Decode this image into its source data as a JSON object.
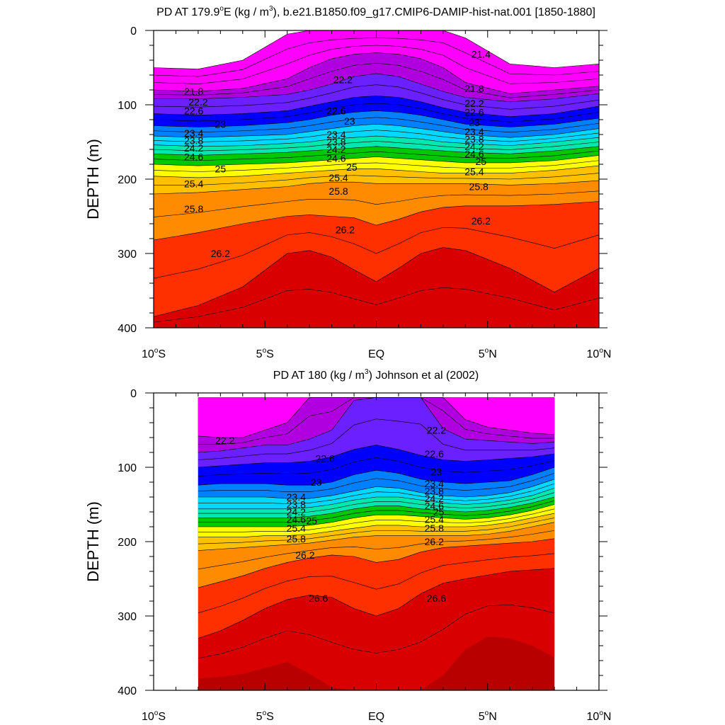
{
  "figure": {
    "background": "#ffffff",
    "color_levels": [
      21.4,
      21.6,
      21.8,
      22.0,
      22.2,
      22.4,
      22.6,
      22.8,
      23.0,
      23.2,
      23.4,
      23.6,
      23.8,
      24.0,
      24.2,
      24.4,
      24.6,
      24.8,
      25.0,
      25.2,
      25.4,
      25.6,
      25.8,
      26.0,
      26.2,
      26.4,
      26.6,
      26.8
    ],
    "color_scale": [
      "#ffffff",
      "#6e6e6e",
      "#a6a6a6",
      "#ff00ff",
      "#d400e8",
      "#b000e0",
      "#8c00f0",
      "#6a20ff",
      "#4830ff",
      "#0000ff",
      "#0050ff",
      "#0080ff",
      "#00b0ff",
      "#00d8ff",
      "#00ffff",
      "#00e8b0",
      "#00d060",
      "#00c800",
      "#80ff00",
      "#ffff00",
      "#ffe000",
      "#ffc000",
      "#ffa030",
      "#ff8c00",
      "#ff6000",
      "#ff3000",
      "#ff0000",
      "#d80000",
      "#b80000"
    ]
  },
  "chart_data": [
    {
      "type": "heatmap",
      "title_line": "PD AT 179.9°E (kg / m³), b.e21.B1850.f09_g17.CMIP6-DAMIP-hist-nat.001 [1850-1880]",
      "title_parts": {
        "a": "PD AT 179.9",
        "deg": "o",
        "b": "E (kg / m",
        "sup": "3",
        "c": "), b.e21.B1850.f09_g17.CMIP6-DAMIP-hist-nat.001 [1850-1880]"
      },
      "ylabel": "DEPTH (m)",
      "x_ticks": [
        {
          "value": -10,
          "label": "10°S",
          "num": "10",
          "deg": "o",
          "hem": "S"
        },
        {
          "value": -5,
          "label": "5°S",
          "num": "5",
          "deg": "o",
          "hem": "S"
        },
        {
          "value": 0,
          "label": "EQ",
          "num": "EQ",
          "deg": "",
          "hem": ""
        },
        {
          "value": 5,
          "label": "5°N",
          "num": "5",
          "deg": "o",
          "hem": "N"
        },
        {
          "value": 10,
          "label": "10°N",
          "num": "10",
          "deg": "o",
          "hem": "N"
        }
      ],
      "y_ticks": [
        {
          "value": 0,
          "label": "0"
        },
        {
          "value": 100,
          "label": "100"
        },
        {
          "value": 200,
          "label": "200"
        },
        {
          "value": 300,
          "label": "300"
        },
        {
          "value": 400,
          "label": "400"
        }
      ],
      "xlim": [
        -10,
        10
      ],
      "ylim": [
        0,
        400
      ],
      "data_xlim": [
        -10,
        10
      ],
      "contour_interval": 0.2,
      "x": [
        -10,
        -8,
        -6,
        -4,
        -3,
        -2,
        -1,
        0,
        1,
        2,
        3,
        4,
        6,
        8,
        10
      ],
      "isopycnals": [
        {
          "level": 21.4,
          "depth": [
            50,
            52,
            40,
            5,
            0,
            0,
            0,
            0,
            0,
            0,
            0,
            10,
            45,
            50,
            45
          ]
        },
        {
          "level": 22.0,
          "depth": [
            80,
            82,
            78,
            65,
            50,
            38,
            32,
            30,
            32,
            38,
            50,
            70,
            85,
            80,
            75
          ]
        },
        {
          "level": 22.4,
          "depth": [
            92,
            92,
            90,
            86,
            80,
            72,
            62,
            58,
            62,
            72,
            82,
            90,
            96,
            92,
            85
          ]
        },
        {
          "level": 22.8,
          "depth": [
            112,
            114,
            112,
            108,
            102,
            96,
            90,
            88,
            90,
            96,
            104,
            110,
            116,
            112,
            102
          ]
        },
        {
          "level": 23.2,
          "depth": [
            128,
            130,
            128,
            124,
            120,
            114,
            110,
            108,
            110,
            114,
            120,
            126,
            130,
            126,
            118
          ]
        },
        {
          "level": 23.6,
          "depth": [
            142,
            144,
            142,
            140,
            136,
            132,
            128,
            126,
            128,
            132,
            136,
            140,
            144,
            140,
            132
          ]
        },
        {
          "level": 24.0,
          "depth": [
            154,
            156,
            155,
            152,
            150,
            146,
            144,
            142,
            144,
            146,
            150,
            152,
            155,
            150,
            144
          ]
        },
        {
          "level": 24.4,
          "depth": [
            166,
            168,
            166,
            164,
            162,
            160,
            158,
            156,
            158,
            160,
            162,
            164,
            166,
            162,
            156
          ]
        },
        {
          "level": 24.8,
          "depth": [
            180,
            182,
            180,
            178,
            176,
            174,
            172,
            170,
            172,
            174,
            176,
            178,
            178,
            175,
            168
          ]
        },
        {
          "level": 25.2,
          "depth": [
            196,
            198,
            196,
            192,
            190,
            188,
            186,
            186,
            188,
            190,
            192,
            192,
            192,
            188,
            182
          ]
        },
        {
          "level": 25.6,
          "depth": [
            220,
            218,
            214,
            210,
            206,
            204,
            204,
            206,
            206,
            206,
            206,
            206,
            208,
            206,
            202
          ]
        },
        {
          "level": 26.0,
          "depth": [
            282,
            272,
            260,
            250,
            248,
            250,
            252,
            262,
            254,
            244,
            238,
            236,
            236,
            234,
            230
          ]
        },
        {
          "level": 26.4,
          "depth": [
            385,
            370,
            345,
            300,
            296,
            305,
            322,
            338,
            320,
            300,
            292,
            296,
            320,
            352,
            320
          ]
        },
        {
          "level": 26.8,
          "depth": [
            400,
            400,
            400,
            400,
            400,
            400,
            400,
            400,
            400,
            400,
            400,
            400,
            400,
            400,
            400
          ]
        }
      ],
      "contour_labels": [
        {
          "text": "21.4",
          "x": 4.7,
          "depth": 32
        },
        {
          "text": "21.8",
          "x": -8.2,
          "depth": 82
        },
        {
          "text": "22.2",
          "x": -8.0,
          "depth": 96
        },
        {
          "text": "22.6",
          "x": -8.2,
          "depth": 108
        },
        {
          "text": "23",
          "x": -7.0,
          "depth": 126
        },
        {
          "text": "23.4",
          "x": -8.2,
          "depth": 138
        },
        {
          "text": "23.8",
          "x": -8.2,
          "depth": 148
        },
        {
          "text": "24.2",
          "x": -8.2,
          "depth": 158
        },
        {
          "text": "24.6",
          "x": -8.2,
          "depth": 170
        },
        {
          "text": "25",
          "x": -7.0,
          "depth": 186
        },
        {
          "text": "25.4",
          "x": -8.2,
          "depth": 206
        },
        {
          "text": "25.8",
          "x": -8.2,
          "depth": 240
        },
        {
          "text": "26.2",
          "x": -7.0,
          "depth": 300
        },
        {
          "text": "22.2",
          "x": -1.5,
          "depth": 66
        },
        {
          "text": "22.6",
          "x": -1.8,
          "depth": 108
        },
        {
          "text": "23",
          "x": -1.2,
          "depth": 122
        },
        {
          "text": "23.4",
          "x": -1.8,
          "depth": 140
        },
        {
          "text": "23.8",
          "x": -1.8,
          "depth": 150
        },
        {
          "text": "24.2",
          "x": -1.8,
          "depth": 160
        },
        {
          "text": "24.6",
          "x": -1.8,
          "depth": 172
        },
        {
          "text": "25",
          "x": -1.1,
          "depth": 184
        },
        {
          "text": "25.4",
          "x": -1.7,
          "depth": 198
        },
        {
          "text": "25.8",
          "x": -1.7,
          "depth": 216
        },
        {
          "text": "26.2",
          "x": -1.4,
          "depth": 268
        },
        {
          "text": "21.8",
          "x": 4.4,
          "depth": 78
        },
        {
          "text": "22.2",
          "x": 4.4,
          "depth": 98
        },
        {
          "text": "22.6",
          "x": 4.4,
          "depth": 110
        },
        {
          "text": "23",
          "x": 4.4,
          "depth": 124
        },
        {
          "text": "23.4",
          "x": 4.4,
          "depth": 136
        },
        {
          "text": "23.8",
          "x": 4.4,
          "depth": 146
        },
        {
          "text": "24.2",
          "x": 4.4,
          "depth": 156
        },
        {
          "text": "24.6",
          "x": 4.4,
          "depth": 166
        },
        {
          "text": "25",
          "x": 4.7,
          "depth": 176
        },
        {
          "text": "25.4",
          "x": 4.4,
          "depth": 190
        },
        {
          "text": "25.8",
          "x": 4.6,
          "depth": 210
        },
        {
          "text": "26.2",
          "x": 4.7,
          "depth": 256
        }
      ]
    },
    {
      "type": "heatmap",
      "title_line": "PD AT 180 (kg / m³) Johnson et al (2002)",
      "title_parts": {
        "a": "PD AT 180 (kg / m",
        "deg": "",
        "b": "",
        "sup": "3",
        "c": ") Johnson et al (2002)"
      },
      "ylabel": "DEPTH (m)",
      "x_ticks": [
        {
          "value": -10,
          "label": "10°S",
          "num": "10",
          "deg": "o",
          "hem": "S"
        },
        {
          "value": -5,
          "label": "5°S",
          "num": "5",
          "deg": "o",
          "hem": "S"
        },
        {
          "value": 0,
          "label": "EQ",
          "num": "EQ",
          "deg": "",
          "hem": ""
        },
        {
          "value": 5,
          "label": "5°N",
          "num": "5",
          "deg": "o",
          "hem": "N"
        },
        {
          "value": 10,
          "label": "10°N",
          "num": "10",
          "deg": "o",
          "hem": "N"
        }
      ],
      "y_ticks": [
        {
          "value": 0,
          "label": "0"
        },
        {
          "value": 100,
          "label": "100"
        },
        {
          "value": 200,
          "label": "200"
        },
        {
          "value": 300,
          "label": "300"
        },
        {
          "value": 400,
          "label": "400"
        }
      ],
      "xlim": [
        -10,
        10
      ],
      "ylim": [
        0,
        400
      ],
      "data_xlim": [
        -8,
        8
      ],
      "data_top_depth": 6,
      "contour_interval": 0.2,
      "x": [
        -8,
        -7,
        -6,
        -5,
        -4,
        -3,
        -2,
        -1,
        0,
        1,
        2,
        3,
        4,
        5,
        6,
        7,
        8
      ],
      "isopycnals": [
        {
          "level": 22.0,
          "depth": [
            58,
            60,
            60,
            50,
            40,
            0,
            0,
            0,
            0,
            0,
            0,
            0,
            36,
            46,
            50,
            54,
            56
          ]
        },
        {
          "level": 22.4,
          "depth": [
            80,
            78,
            74,
            70,
            70,
            62,
            50,
            10,
            0,
            0,
            0,
            48,
            62,
            64,
            66,
            68,
            66
          ]
        },
        {
          "level": 22.8,
          "depth": [
            100,
            98,
            96,
            94,
            94,
            92,
            86,
            76,
            70,
            76,
            84,
            90,
            92,
            90,
            88,
            86,
            82
          ]
        },
        {
          "level": 23.2,
          "depth": [
            124,
            122,
            122,
            122,
            124,
            124,
            120,
            110,
            104,
            108,
            116,
            120,
            122,
            120,
            118,
            110,
            100
          ]
        },
        {
          "level": 23.6,
          "depth": [
            140,
            140,
            140,
            140,
            142,
            142,
            138,
            132,
            126,
            128,
            134,
            138,
            140,
            138,
            134,
            126,
            116
          ]
        },
        {
          "level": 24.0,
          "depth": [
            156,
            156,
            156,
            156,
            156,
            154,
            150,
            144,
            140,
            140,
            144,
            148,
            150,
            148,
            144,
            138,
            128
          ]
        },
        {
          "level": 24.4,
          "depth": [
            168,
            168,
            168,
            168,
            168,
            166,
            162,
            156,
            152,
            152,
            156,
            158,
            160,
            158,
            154,
            148,
            140
          ]
        },
        {
          "level": 24.8,
          "depth": [
            180,
            180,
            180,
            180,
            180,
            178,
            174,
            168,
            164,
            164,
            166,
            168,
            170,
            168,
            164,
            158,
            150
          ]
        },
        {
          "level": 25.2,
          "depth": [
            194,
            194,
            194,
            192,
            192,
            190,
            186,
            182,
            178,
            178,
            180,
            180,
            180,
            178,
            174,
            168,
            162
          ]
        },
        {
          "level": 25.6,
          "depth": [
            212,
            210,
            208,
            206,
            204,
            202,
            198,
            194,
            192,
            192,
            192,
            192,
            192,
            190,
            186,
            180,
            174
          ]
        },
        {
          "level": 26.0,
          "depth": [
            262,
            254,
            246,
            236,
            228,
            222,
            218,
            220,
            228,
            224,
            214,
            208,
            206,
            204,
            202,
            200,
            196
          ]
        },
        {
          "level": 26.4,
          "depth": [
            330,
            320,
            306,
            290,
            278,
            272,
            275,
            290,
            300,
            290,
            270,
            256,
            250,
            245,
            240,
            238,
            236
          ]
        },
        {
          "level": 26.8,
          "depth": [
            384,
            382,
            378,
            370,
            362,
            378,
            396,
            400,
            400,
            400,
            400,
            380,
            345,
            328,
            330,
            340,
            356
          ]
        }
      ],
      "contour_labels": [
        {
          "text": "22.2",
          "x": -6.8,
          "depth": 64
        },
        {
          "text": "22.6",
          "x": -2.3,
          "depth": 88
        },
        {
          "text": "23",
          "x": -2.7,
          "depth": 120
        },
        {
          "text": "23.4",
          "x": -3.6,
          "depth": 140
        },
        {
          "text": "23.8",
          "x": -3.6,
          "depth": 150
        },
        {
          "text": "24.2",
          "x": -3.6,
          "depth": 160
        },
        {
          "text": "24.6",
          "x": -3.6,
          "depth": 170
        },
        {
          "text": "25",
          "x": -2.9,
          "depth": 172
        },
        {
          "text": "25.4",
          "x": -3.6,
          "depth": 182
        },
        {
          "text": "25.8",
          "x": -3.6,
          "depth": 196
        },
        {
          "text": "26.2",
          "x": -3.2,
          "depth": 218
        },
        {
          "text": "26.6",
          "x": -2.6,
          "depth": 276
        },
        {
          "text": "22.2",
          "x": 2.7,
          "depth": 50
        },
        {
          "text": "22.6",
          "x": 2.6,
          "depth": 82
        },
        {
          "text": "23",
          "x": 2.7,
          "depth": 106
        },
        {
          "text": "23.4",
          "x": 2.6,
          "depth": 122
        },
        {
          "text": "23.8",
          "x": 2.6,
          "depth": 132
        },
        {
          "text": "24.2",
          "x": 2.6,
          "depth": 142
        },
        {
          "text": "24.6",
          "x": 2.6,
          "depth": 152
        },
        {
          "text": "25",
          "x": 2.8,
          "depth": 160
        },
        {
          "text": "25.4",
          "x": 2.6,
          "depth": 170
        },
        {
          "text": "25.8",
          "x": 2.6,
          "depth": 182
        },
        {
          "text": "26.2",
          "x": 2.6,
          "depth": 200
        },
        {
          "text": "26.6",
          "x": 2.7,
          "depth": 276
        }
      ]
    }
  ]
}
